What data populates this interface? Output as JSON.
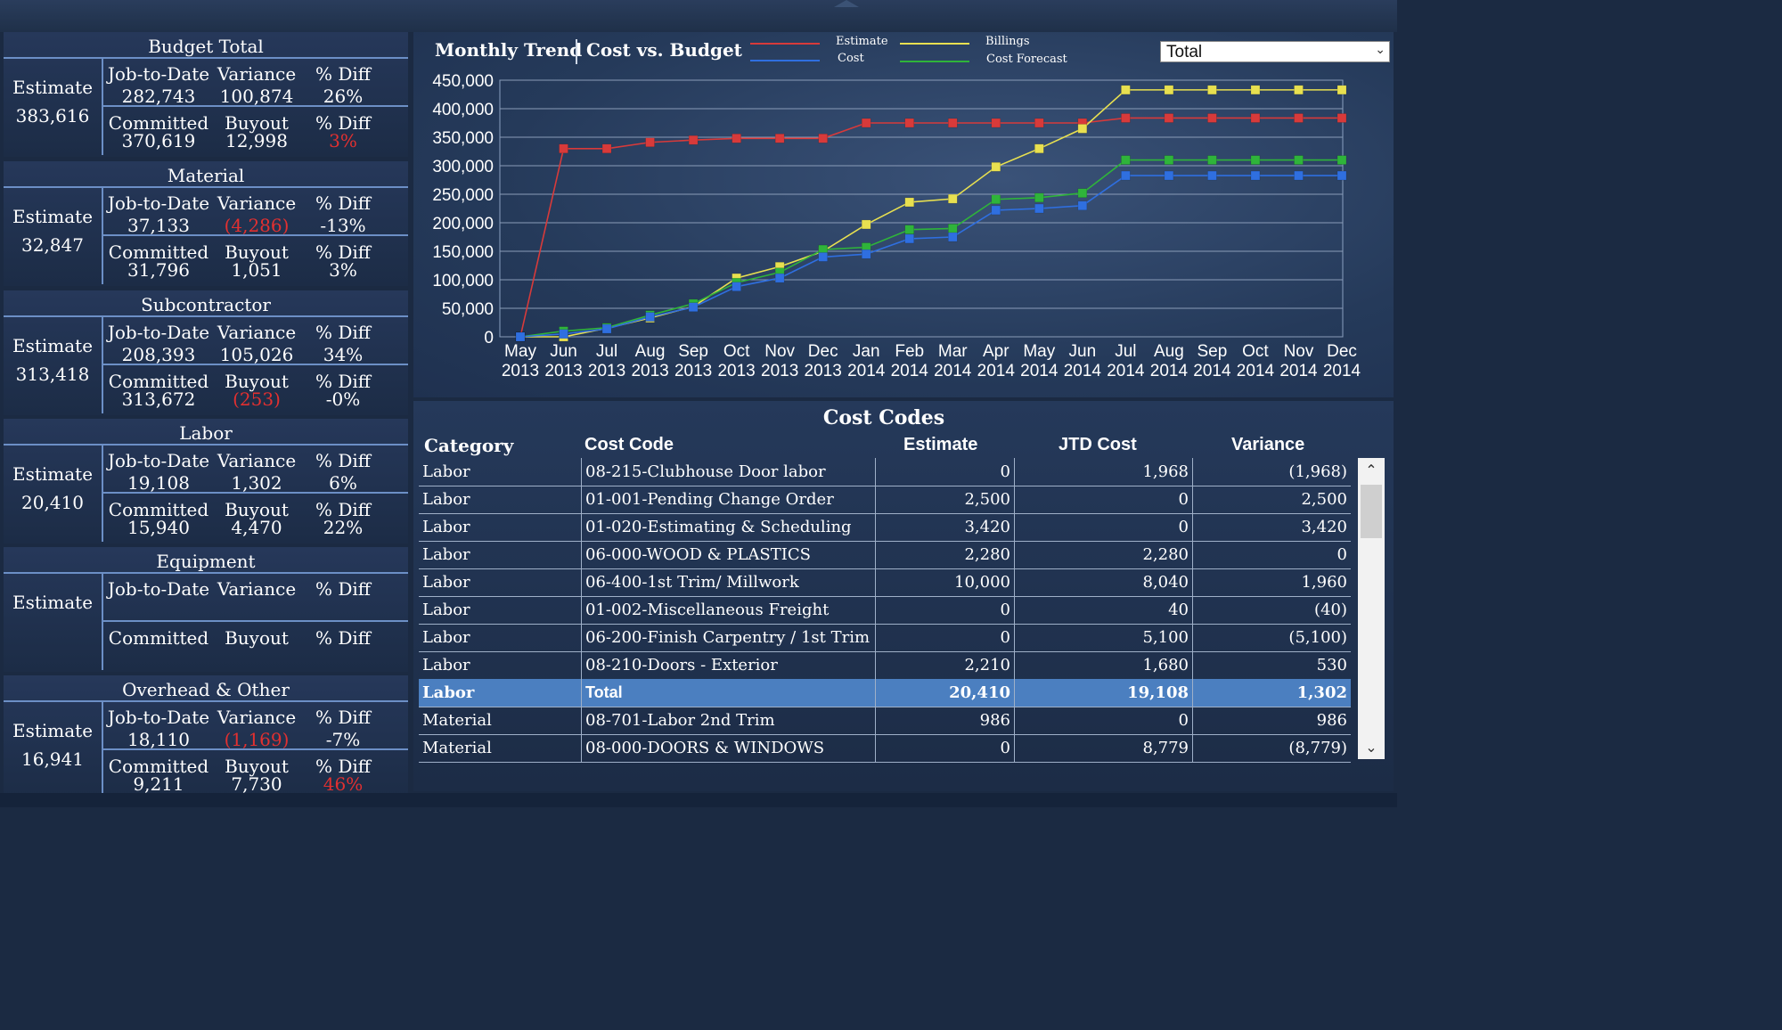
{
  "colors": {
    "estimate": "#d83a3a",
    "cost": "#2f6fe0",
    "billings": "#e8e050",
    "forecast": "#2fb43a",
    "selected_row": "#4b7fc0",
    "negative": "#e23030"
  },
  "panels": [
    {
      "title": "Budget Total",
      "estimate_label": "Estimate",
      "estimate": "383,616",
      "jtd_label": "Job-to-Date",
      "var_label": "Variance",
      "pd1_label": "% Diff",
      "jtd": "282,743",
      "variance": "100,874",
      "pd1": "26%",
      "com_label": "Committed",
      "buy_label": "Buyout",
      "pd2_label": "% Diff",
      "committed": "370,619",
      "buyout": "12,998",
      "pd2": "3%"
    },
    {
      "title": "Material",
      "estimate_label": "Estimate",
      "estimate": "32,847",
      "jtd_label": "Job-to-Date",
      "var_label": "Variance",
      "pd1_label": "% Diff",
      "jtd": "37,133",
      "variance": "(4,286)",
      "pd1": "-13%",
      "com_label": "Committed",
      "buy_label": "Buyout",
      "pd2_label": "% Diff",
      "committed": "31,796",
      "buyout": "1,051",
      "pd2": "3%"
    },
    {
      "title": "Subcontractor",
      "estimate_label": "Estimate",
      "estimate": "313,418",
      "jtd_label": "Job-to-Date",
      "var_label": "Variance",
      "pd1_label": "% Diff",
      "jtd": "208,393",
      "variance": "105,026",
      "pd1": "34%",
      "com_label": "Committed",
      "buy_label": "Buyout",
      "pd2_label": "% Diff",
      "committed": "313,672",
      "buyout": "(253)",
      "pd2": "-0%"
    },
    {
      "title": "Labor",
      "estimate_label": "Estimate",
      "estimate": "20,410",
      "jtd_label": "Job-to-Date",
      "var_label": "Variance",
      "pd1_label": "% Diff",
      "jtd": "19,108",
      "variance": "1,302",
      "pd1": "6%",
      "com_label": "Committed",
      "buy_label": "Buyout",
      "pd2_label": "% Diff",
      "committed": "15,940",
      "buyout": "4,470",
      "pd2": "22%"
    },
    {
      "title": "Equipment",
      "estimate_label": "Estimate",
      "estimate": "",
      "jtd_label": "Job-to-Date",
      "var_label": "Variance",
      "pd1_label": "% Diff",
      "jtd": "",
      "variance": "",
      "pd1": "",
      "com_label": "Committed",
      "buy_label": "Buyout",
      "pd2_label": "% Diff",
      "committed": "",
      "buyout": "",
      "pd2": ""
    },
    {
      "title": "Overhead & Other",
      "estimate_label": "Estimate",
      "estimate": "16,941",
      "jtd_label": "Job-to-Date",
      "var_label": "Variance",
      "pd1_label": "% Diff",
      "jtd": "18,110",
      "variance": "(1,169)",
      "pd1": "-7%",
      "com_label": "Committed",
      "buy_label": "Buyout",
      "pd2_label": "% Diff",
      "committed": "9,211",
      "buyout": "7,730",
      "pd2": "46%"
    }
  ],
  "chart": {
    "title_left": "Monthly Trend",
    "title_right": "Cost vs. Budget",
    "dropdown_value": "Total",
    "legend": {
      "estimate": "Estimate",
      "cost": "Cost",
      "billings": "Billings",
      "forecast": "Cost Forecast"
    }
  },
  "chart_data": {
    "type": "line",
    "x": [
      "May 2013",
      "Jun 2013",
      "Jul 2013",
      "Aug 2013",
      "Sep 2013",
      "Oct 2013",
      "Nov 2013",
      "Dec 2013",
      "Jan 2014",
      "Feb 2014",
      "Mar 2014",
      "Apr 2014",
      "May 2014",
      "Jun 2014",
      "Jul 2014",
      "Aug 2014",
      "Sep 2014",
      "Oct 2014",
      "Nov 2014",
      "Dec 2014"
    ],
    "x_month": [
      "May",
      "Jun",
      "Jul",
      "Aug",
      "Sep",
      "Oct",
      "Nov",
      "Dec",
      "Jan",
      "Feb",
      "Mar",
      "Apr",
      "May",
      "Jun",
      "Jul",
      "Aug",
      "Sep",
      "Oct",
      "Nov",
      "Dec"
    ],
    "x_year": [
      "2013",
      "2013",
      "2013",
      "2013",
      "2013",
      "2013",
      "2013",
      "2013",
      "2014",
      "2014",
      "2014",
      "2014",
      "2014",
      "2014",
      "2014",
      "2014",
      "2014",
      "2014",
      "2014",
      "2014"
    ],
    "yticks": [
      "0",
      "50,000",
      "100,000",
      "150,000",
      "200,000",
      "250,000",
      "300,000",
      "350,000",
      "400,000",
      "450,000"
    ],
    "ylim": [
      0,
      450000
    ],
    "grid": true,
    "legend_position": "top",
    "series": [
      {
        "name": "Estimate",
        "color": "#d83a3a",
        "values": [
          0,
          330000,
          330000,
          341000,
          345000,
          348000,
          348000,
          348000,
          375000,
          375000,
          375000,
          375000,
          375000,
          375000,
          383616,
          383616,
          383616,
          383616,
          383616,
          383616
        ]
      },
      {
        "name": "Billings",
        "color": "#e8e050",
        "values": [
          0,
          0,
          15000,
          33000,
          53000,
          103000,
          123000,
          150000,
          197000,
          236000,
          242000,
          298000,
          330000,
          365000,
          433000,
          433000,
          433000,
          433000,
          433000,
          433000
        ]
      },
      {
        "name": "Cost Forecast",
        "color": "#2fb43a",
        "values": [
          0,
          10000,
          16000,
          38000,
          58000,
          95000,
          113000,
          153000,
          157000,
          188000,
          190000,
          241000,
          244000,
          252000,
          310000,
          310000,
          310000,
          310000,
          310000,
          310000
        ]
      },
      {
        "name": "Cost",
        "color": "#2f6fe0",
        "values": [
          0,
          5000,
          14000,
          35000,
          52000,
          88000,
          103000,
          140000,
          145000,
          172000,
          175000,
          222000,
          225000,
          230000,
          282743,
          282743,
          282743,
          282743,
          282743,
          282743
        ]
      }
    ]
  },
  "table": {
    "title": "Cost Codes",
    "headers": {
      "category": "Category",
      "cost_code": "Cost Code",
      "estimate": "Estimate",
      "jtd": "JTD Cost",
      "variance": "Variance"
    },
    "rows": [
      {
        "category": "Labor",
        "code": "08-215-Clubhouse Door labor",
        "estimate": "0",
        "jtd": "1,968",
        "variance": "(1,968)"
      },
      {
        "category": "Labor",
        "code": "01-001-Pending Change Order",
        "estimate": "2,500",
        "jtd": "0",
        "variance": "2,500"
      },
      {
        "category": "Labor",
        "code": "01-020-Estimating & Scheduling",
        "estimate": "3,420",
        "jtd": "0",
        "variance": "3,420"
      },
      {
        "category": "Labor",
        "code": "06-000-WOOD & PLASTICS",
        "estimate": "2,280",
        "jtd": "2,280",
        "variance": "0"
      },
      {
        "category": "Labor",
        "code": "06-400-1st Trim/ Millwork",
        "estimate": "10,000",
        "jtd": "8,040",
        "variance": "1,960"
      },
      {
        "category": "Labor",
        "code": "01-002-Miscellaneous Freight",
        "estimate": "0",
        "jtd": "40",
        "variance": "(40)"
      },
      {
        "category": "Labor",
        "code": "06-200-Finish Carpentry / 1st Trim",
        "estimate": "0",
        "jtd": "5,100",
        "variance": "(5,100)"
      },
      {
        "category": "Labor",
        "code": "08-210-Doors - Exterior",
        "estimate": "2,210",
        "jtd": "1,680",
        "variance": "530"
      },
      {
        "category": "Labor",
        "code": "Total",
        "estimate": "20,410",
        "jtd": "19,108",
        "variance": "1,302",
        "selected": true
      },
      {
        "category": "Material",
        "code": "08-701-Labor 2nd Trim",
        "estimate": "986",
        "jtd": "0",
        "variance": "986"
      },
      {
        "category": "Material",
        "code": "08-000-DOORS & WINDOWS",
        "estimate": "0",
        "jtd": "8,779",
        "variance": "(8,779)"
      }
    ]
  }
}
